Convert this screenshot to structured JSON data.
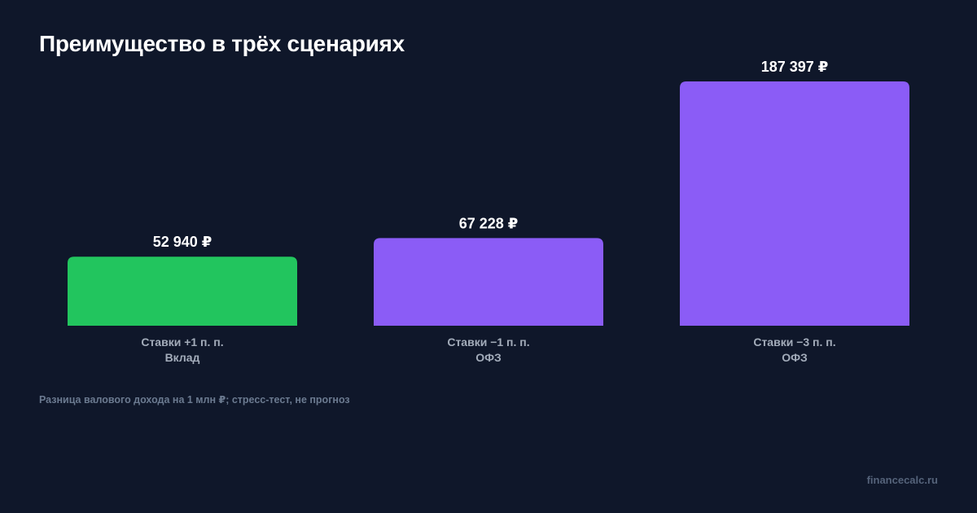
{
  "title": "Преимущество в трёх сценариях",
  "note": "Разница валового дохода на 1 млн ₽; стресс-тест, не прогноз",
  "brand": "financecalc.ru",
  "colors": {
    "background": "#0f172a",
    "deposit": "#22c55e",
    "ofz": "#8b5cf6",
    "label": "#ffffff",
    "category": "#a3acba"
  },
  "chart_data": {
    "type": "bar",
    "title": "Преимущество в трёх сценариях",
    "xlabel": "",
    "ylabel": "",
    "ylim": [
      0,
      187397
    ],
    "grid": false,
    "categories": [
      {
        "scenario": "Ставки +1 п. п.",
        "winner": "Вклад"
      },
      {
        "scenario": "Ставки −1 п. п.",
        "winner": "ОФЗ"
      },
      {
        "scenario": "Ставки −3 п. п.",
        "winner": "ОФЗ"
      }
    ],
    "values": [
      52940,
      67228,
      187397
    ],
    "value_labels": [
      "52 940 ₽",
      "67 228 ₽",
      "187 397 ₽"
    ],
    "bar_colors": [
      "#22c55e",
      "#8b5cf6",
      "#8b5cf6"
    ]
  }
}
